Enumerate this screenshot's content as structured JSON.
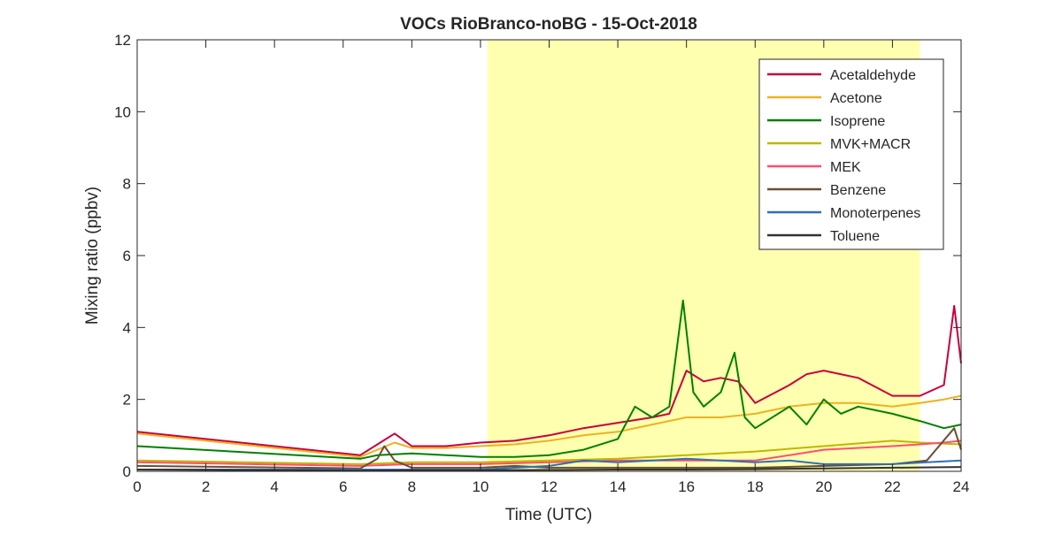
{
  "chart_data": {
    "type": "line",
    "title": "VOCs RioBranco-noBG - 15-Oct-2018",
    "xlabel": "Time (UTC)",
    "ylabel": "Mixing ratio (ppbv)",
    "xlim": [
      0,
      24
    ],
    "ylim": [
      0,
      12
    ],
    "xticks": [
      0,
      2,
      4,
      6,
      8,
      10,
      12,
      14,
      16,
      18,
      20,
      22,
      24
    ],
    "yticks": [
      0,
      2,
      4,
      6,
      8,
      10,
      12
    ],
    "grid": false,
    "legend_position": "top-right",
    "shaded_region": {
      "x_start": 10.2,
      "x_end": 22.8,
      "color": "#ffffb0"
    },
    "series": [
      {
        "name": "Acetaldehyde",
        "color": "#c8003c",
        "x": [
          0,
          6.5,
          7,
          7.5,
          8,
          9,
          10,
          11,
          12,
          13,
          14,
          15,
          15.5,
          16,
          16.5,
          17,
          17.5,
          18,
          19,
          19.5,
          20,
          21,
          22,
          22.8,
          23.5,
          23.8,
          24
        ],
        "y": [
          1.1,
          0.45,
          0.75,
          1.05,
          0.7,
          0.7,
          0.8,
          0.85,
          1.0,
          1.2,
          1.35,
          1.5,
          1.6,
          2.8,
          2.5,
          2.6,
          2.5,
          1.9,
          2.4,
          2.7,
          2.8,
          2.6,
          2.1,
          2.1,
          2.4,
          4.6,
          3.0
        ]
      },
      {
        "name": "Acetone",
        "color": "#edb120",
        "x": [
          0,
          6.5,
          7,
          7.5,
          8,
          9,
          10,
          11,
          12,
          13,
          14,
          15,
          16,
          17,
          18,
          19,
          20,
          21,
          22,
          22.8,
          23.5,
          24
        ],
        "y": [
          1.05,
          0.4,
          0.6,
          0.8,
          0.65,
          0.65,
          0.7,
          0.75,
          0.85,
          1.0,
          1.1,
          1.3,
          1.5,
          1.5,
          1.6,
          1.8,
          1.9,
          1.9,
          1.8,
          1.9,
          2.0,
          2.1
        ]
      },
      {
        "name": "Isoprene",
        "color": "#008000",
        "x": [
          0,
          6.5,
          7,
          8,
          9,
          10,
          11,
          12,
          13,
          14,
          14.5,
          15,
          15.5,
          15.9,
          16.2,
          16.5,
          17,
          17.4,
          17.7,
          18,
          19,
          19.5,
          20,
          20.5,
          21,
          22,
          22.8,
          23.5,
          24
        ],
        "y": [
          0.7,
          0.35,
          0.45,
          0.5,
          0.45,
          0.4,
          0.4,
          0.45,
          0.6,
          0.9,
          1.8,
          1.5,
          1.8,
          4.75,
          2.2,
          1.8,
          2.2,
          3.3,
          1.5,
          1.2,
          1.8,
          1.3,
          2.0,
          1.6,
          1.8,
          1.6,
          1.4,
          1.2,
          1.3
        ]
      },
      {
        "name": "MVK+MACR",
        "color": "#bdb800",
        "x": [
          0,
          6.5,
          8,
          10,
          12,
          14,
          16,
          18,
          20,
          22,
          22.8,
          24
        ],
        "y": [
          0.3,
          0.2,
          0.25,
          0.25,
          0.3,
          0.35,
          0.45,
          0.55,
          0.7,
          0.85,
          0.8,
          0.75
        ]
      },
      {
        "name": "MEK",
        "color": "#ff4f6e",
        "x": [
          0,
          6.5,
          8,
          10,
          12,
          14,
          16,
          18,
          19,
          20,
          22,
          22.8,
          23.5,
          24
        ],
        "y": [
          0.25,
          0.15,
          0.2,
          0.2,
          0.25,
          0.3,
          0.3,
          0.3,
          0.45,
          0.6,
          0.7,
          0.75,
          0.8,
          0.85
        ]
      },
      {
        "name": "Benzene",
        "color": "#6b4e34",
        "x": [
          0,
          6.5,
          7,
          7.2,
          7.5,
          8,
          10,
          11,
          12,
          14,
          16,
          18,
          20,
          22,
          23,
          23.8,
          24
        ],
        "y": [
          0.15,
          0.08,
          0.35,
          0.7,
          0.3,
          0.1,
          0.1,
          0.15,
          0.1,
          0.1,
          0.1,
          0.1,
          0.15,
          0.2,
          0.3,
          1.2,
          0.6
        ]
      },
      {
        "name": "Monoterpenes",
        "color": "#2f6fb5",
        "x": [
          0,
          6.5,
          8,
          10,
          12,
          13,
          14,
          15,
          16,
          17,
          18,
          19,
          20,
          21,
          22,
          23,
          24
        ],
        "y": [
          0.05,
          0.05,
          0.05,
          0.05,
          0.15,
          0.3,
          0.25,
          0.3,
          0.35,
          0.3,
          0.25,
          0.3,
          0.2,
          0.2,
          0.2,
          0.25,
          0.3
        ]
      },
      {
        "name": "Toluene",
        "color": "#333333",
        "x": [
          0,
          6.5,
          8,
          10,
          12,
          14,
          16,
          18,
          20,
          22,
          24
        ],
        "y": [
          0.05,
          0.02,
          0.03,
          0.03,
          0.04,
          0.05,
          0.05,
          0.06,
          0.08,
          0.1,
          0.12
        ]
      }
    ]
  }
}
